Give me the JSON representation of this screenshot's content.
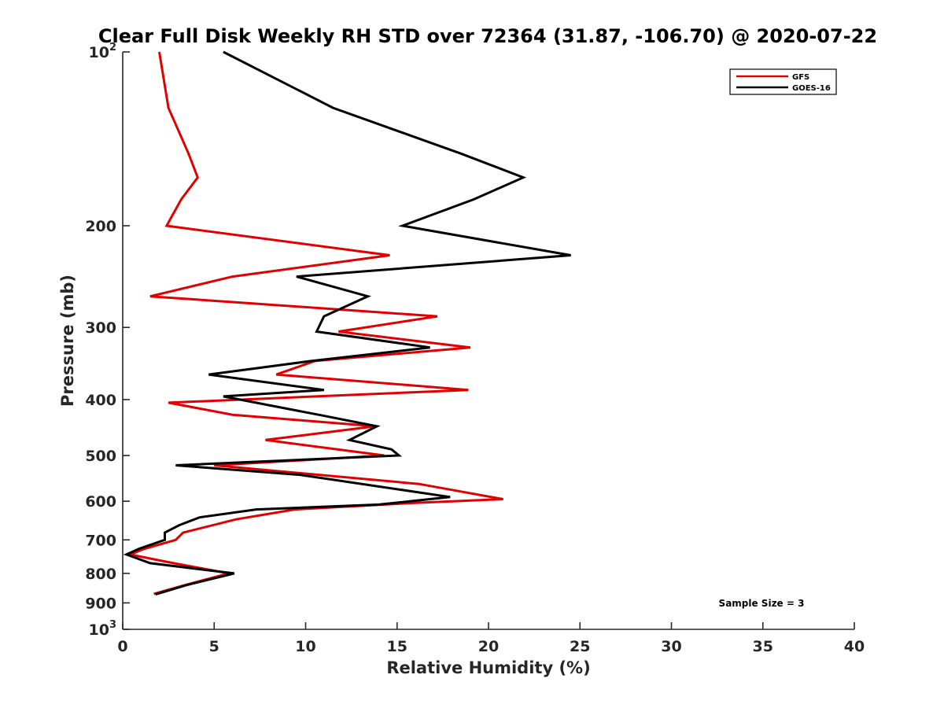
{
  "chart_data": {
    "type": "line",
    "title": "Clear Full Disk Weekly RH STD over 72364 (31.87, -106.70) @ 2020-07-22",
    "xlabel": "Relative Humidity (%)",
    "ylabel": "Pressure (mb)",
    "xlim": [
      0,
      40
    ],
    "ylim": [
      100,
      1000
    ],
    "yscale": "log",
    "y_reversed": true,
    "grid": false,
    "x_ticks": [
      "0",
      "5",
      "10",
      "15",
      "20",
      "25",
      "30",
      "35",
      "40"
    ],
    "y_ticks": [
      {
        "value": 100,
        "label": "10",
        "sup": "2"
      },
      {
        "value": 200,
        "label": "200",
        "sup": ""
      },
      {
        "value": 300,
        "label": "300",
        "sup": ""
      },
      {
        "value": 400,
        "label": "400",
        "sup": ""
      },
      {
        "value": 500,
        "label": "500",
        "sup": ""
      },
      {
        "value": 600,
        "label": "600",
        "sup": ""
      },
      {
        "value": 700,
        "label": "700",
        "sup": ""
      },
      {
        "value": 800,
        "label": "800",
        "sup": ""
      },
      {
        "value": 900,
        "label": "900",
        "sup": ""
      },
      {
        "value": 1000,
        "label": "10",
        "sup": "3"
      }
    ],
    "legend_position": "top-right",
    "annotation": "Sample Size = 3",
    "series": [
      {
        "name": "GFS",
        "color": "#e00000",
        "points": [
          [
            2.0,
            100
          ],
          [
            2.5,
            125
          ],
          [
            3.6,
            150
          ],
          [
            4.1,
            165
          ],
          [
            3.2,
            180
          ],
          [
            2.4,
            200
          ],
          [
            14.6,
            225
          ],
          [
            6.0,
            245
          ],
          [
            1.5,
            265
          ],
          [
            17.2,
            287
          ],
          [
            11.8,
            305
          ],
          [
            19.0,
            325
          ],
          [
            10.5,
            343
          ],
          [
            8.4,
            362
          ],
          [
            18.9,
            385
          ],
          [
            2.5,
            405
          ],
          [
            6.0,
            425
          ],
          [
            13.8,
            445
          ],
          [
            7.8,
            470
          ],
          [
            14.3,
            500
          ],
          [
            5.0,
            520
          ],
          [
            16.2,
            560
          ],
          [
            20.8,
            595
          ],
          [
            15.5,
            605
          ],
          [
            9.4,
            620
          ],
          [
            6.2,
            645
          ],
          [
            3.3,
            680
          ],
          [
            2.9,
            700
          ],
          [
            1.2,
            725
          ],
          [
            0.4,
            742
          ],
          [
            2.5,
            765
          ],
          [
            5.8,
            800
          ],
          [
            3.3,
            840
          ],
          [
            1.7,
            868
          ]
        ]
      },
      {
        "name": "GOES-16",
        "color": "#000000",
        "points": [
          [
            5.5,
            100
          ],
          [
            11.5,
            125
          ],
          [
            18.5,
            150
          ],
          [
            21.9,
            165
          ],
          [
            19.2,
            180
          ],
          [
            15.3,
            200
          ],
          [
            24.5,
            225
          ],
          [
            9.5,
            245
          ],
          [
            13.4,
            265
          ],
          [
            11.0,
            287
          ],
          [
            10.6,
            305
          ],
          [
            16.8,
            325
          ],
          [
            10.3,
            343
          ],
          [
            4.7,
            362
          ],
          [
            11.0,
            385
          ],
          [
            5.5,
            395
          ],
          [
            10.7,
            425
          ],
          [
            13.9,
            445
          ],
          [
            12.4,
            470
          ],
          [
            14.7,
            488
          ],
          [
            15.1,
            500
          ],
          [
            2.9,
            520
          ],
          [
            9.7,
            540
          ],
          [
            17.9,
            590
          ],
          [
            14.0,
            608
          ],
          [
            7.3,
            620
          ],
          [
            4.2,
            640
          ],
          [
            3.1,
            660
          ],
          [
            2.3,
            680
          ],
          [
            2.3,
            700
          ],
          [
            0.9,
            725
          ],
          [
            0.2,
            742
          ],
          [
            1.5,
            768
          ],
          [
            6.1,
            800
          ],
          [
            3.5,
            838
          ],
          [
            1.8,
            870
          ]
        ]
      }
    ]
  }
}
